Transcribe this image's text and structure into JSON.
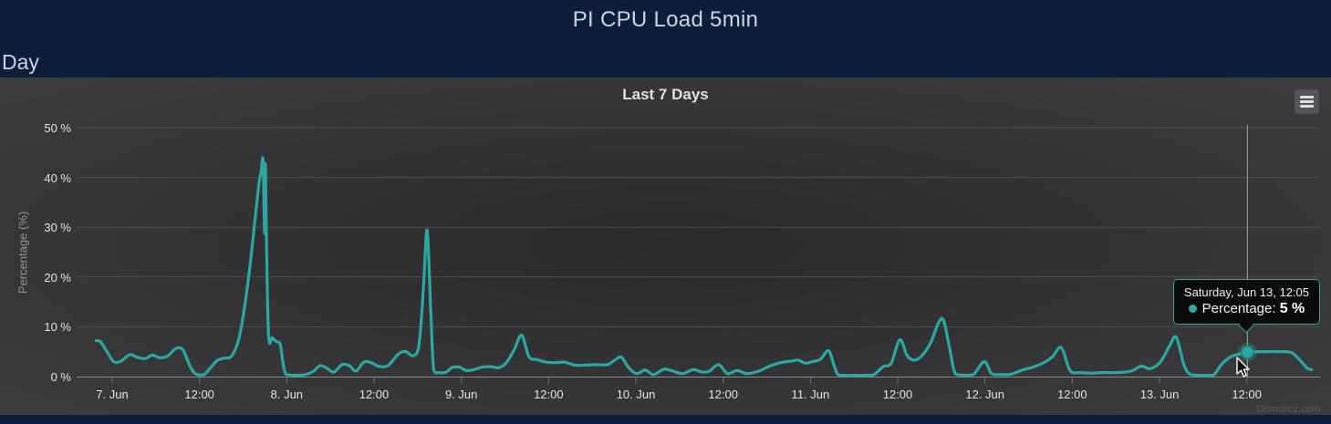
{
  "header": {
    "title": "PI CPU Load 5min",
    "range_label": "Day"
  },
  "chart": {
    "credits": "Domoticz.com",
    "menu_icon": "hamburger-menu-icon",
    "colors": {
      "page_bg": "#0d1e3b",
      "card_bg_center": "#2a2a2b",
      "card_bg_edge": "#3e3e40",
      "series": "#2CA8A3",
      "grid": "#4e4e52",
      "axis_line": "#8a8a8d",
      "tick": "#707073",
      "label": "#e3e3e6",
      "crosshair": "#c8c8c8",
      "tooltip_border": "#2CA8A3"
    }
  },
  "chart_data": {
    "type": "spline",
    "title": "Last 7 Days",
    "ylabel": "Percentage (%)",
    "xlabel": "",
    "ylim": [
      0,
      50
    ],
    "y_tick_step": 10,
    "y_tick_labels": [
      "0 %",
      "10 %",
      "20 %",
      "30 %",
      "40 %",
      "50 %"
    ],
    "x_tick_labels": [
      "7. Jun",
      "12:00",
      "8. Jun",
      "12:00",
      "9. Jun",
      "12:00",
      "10. Jun",
      "12:00",
      "11. Jun",
      "12:00",
      "12. Jun",
      "12:00",
      "13. Jun",
      "12:00"
    ],
    "x_tick_interval_hours": 12,
    "x_unit": "hours since 7. Jun 00:00",
    "grid": "horizontal-only",
    "legend": "none",
    "series": [
      {
        "name": "Percentage",
        "color": "#2CA8A3",
        "points": [
          [
            -2.2,
            7.2
          ],
          [
            -1.6,
            7.0
          ],
          [
            -0.8,
            5.2
          ],
          [
            0.2,
            3.0
          ],
          [
            1.2,
            3.1
          ],
          [
            2.4,
            4.4
          ],
          [
            3.4,
            3.9
          ],
          [
            4.5,
            3.6
          ],
          [
            5.5,
            4.3
          ],
          [
            6.5,
            3.8
          ],
          [
            7.6,
            4.1
          ],
          [
            8.7,
            5.6
          ],
          [
            9.7,
            5.4
          ],
          [
            10.7,
            2.1
          ],
          [
            11.5,
            0.5
          ],
          [
            12.6,
            0.4
          ],
          [
            13.6,
            1.9
          ],
          [
            14.5,
            3.3
          ],
          [
            15.4,
            3.7
          ],
          [
            16.4,
            4.1
          ],
          [
            17.4,
            7.5
          ],
          [
            18.2,
            14
          ],
          [
            19.0,
            23
          ],
          [
            19.7,
            32.5
          ],
          [
            20.2,
            39
          ],
          [
            20.5,
            41.3
          ],
          [
            20.75,
            43.3
          ],
          [
            20.95,
            28.8
          ],
          [
            21.05,
            42.8
          ],
          [
            21.2,
            28.6
          ],
          [
            21.5,
            8.3
          ],
          [
            22.0,
            7.8
          ],
          [
            22.6,
            7.0
          ],
          [
            23.1,
            6.5
          ],
          [
            23.5,
            2.5
          ],
          [
            23.9,
            0.5
          ],
          [
            24.8,
            0.3
          ],
          [
            26.2,
            0.3
          ],
          [
            27.6,
            1.0
          ],
          [
            28.6,
            2.2
          ],
          [
            29.6,
            1.6
          ],
          [
            30.5,
            0.9
          ],
          [
            31.6,
            2.4
          ],
          [
            32.6,
            2.2
          ],
          [
            33.5,
            1.1
          ],
          [
            34.6,
            2.9
          ],
          [
            35.6,
            2.8
          ],
          [
            36.6,
            2.1
          ],
          [
            37.9,
            2.2
          ],
          [
            39.4,
            4.6
          ],
          [
            40.4,
            5.0
          ],
          [
            41.4,
            4.2
          ],
          [
            42.2,
            6.5
          ],
          [
            42.8,
            18
          ],
          [
            43.3,
            29.4
          ],
          [
            43.8,
            13
          ],
          [
            44.2,
            1.5
          ],
          [
            44.9,
            0.8
          ],
          [
            45.9,
            0.9
          ],
          [
            46.7,
            1.8
          ],
          [
            47.7,
            1.9
          ],
          [
            48.7,
            1.2
          ],
          [
            49.7,
            1.4
          ],
          [
            50.9,
            1.9
          ],
          [
            52.1,
            2.0
          ],
          [
            53.2,
            1.8
          ],
          [
            54.3,
            3.0
          ],
          [
            55.3,
            5.5
          ],
          [
            56.3,
            8.3
          ],
          [
            57.3,
            4.0
          ],
          [
            58.4,
            3.4
          ],
          [
            59.7,
            2.9
          ],
          [
            61.1,
            2.8
          ],
          [
            62.2,
            2.9
          ],
          [
            63.6,
            2.3
          ],
          [
            65.1,
            2.3
          ],
          [
            66.6,
            2.4
          ],
          [
            68.1,
            2.4
          ],
          [
            69.1,
            3.3
          ],
          [
            70.0,
            3.9
          ],
          [
            71.0,
            1.8
          ],
          [
            72.1,
            0.6
          ],
          [
            73.3,
            1.3
          ],
          [
            74.4,
            0.4
          ],
          [
            75.9,
            1.5
          ],
          [
            77.1,
            1.1
          ],
          [
            78.4,
            0.6
          ],
          [
            79.9,
            1.4
          ],
          [
            81.1,
            0.9
          ],
          [
            82.1,
            1.1
          ],
          [
            83.4,
            2.4
          ],
          [
            84.6,
            0.6
          ],
          [
            85.9,
            1.2
          ],
          [
            87.3,
            0.6
          ],
          [
            88.9,
            1.1
          ],
          [
            90.4,
            2.1
          ],
          [
            91.9,
            2.8
          ],
          [
            93.3,
            3.1
          ],
          [
            94.3,
            3.3
          ],
          [
            95.3,
            2.7
          ],
          [
            96.3,
            3.0
          ],
          [
            97.4,
            3.5
          ],
          [
            98.5,
            5.2
          ],
          [
            99.3,
            2.0
          ],
          [
            99.9,
            0.3
          ],
          [
            101.5,
            0.2
          ],
          [
            103.1,
            0.2
          ],
          [
            104.6,
            0.3
          ],
          [
            106.0,
            2.0
          ],
          [
            107.1,
            2.7
          ],
          [
            108.3,
            7.4
          ],
          [
            109.3,
            4.2
          ],
          [
            110.3,
            3.3
          ],
          [
            111.4,
            4.3
          ],
          [
            112.6,
            7.0
          ],
          [
            113.6,
            10.8
          ],
          [
            114.3,
            11.3
          ],
          [
            115.1,
            6.0
          ],
          [
            115.9,
            0.6
          ],
          [
            117.1,
            0.3
          ],
          [
            118.4,
            0.4
          ],
          [
            119.9,
            3.0
          ],
          [
            120.9,
            0.6
          ],
          [
            122.1,
            0.4
          ],
          [
            123.6,
            0.5
          ],
          [
            125.1,
            1.3
          ],
          [
            126.6,
            1.9
          ],
          [
            128.1,
            2.8
          ],
          [
            129.3,
            4.0
          ],
          [
            130.5,
            5.8
          ],
          [
            131.7,
            1.2
          ],
          [
            133.1,
            0.8
          ],
          [
            134.6,
            0.7
          ],
          [
            136.1,
            0.8
          ],
          [
            138.1,
            0.8
          ],
          [
            140.1,
            1.1
          ],
          [
            141.5,
            2.1
          ],
          [
            142.7,
            1.6
          ],
          [
            144.1,
            2.9
          ],
          [
            145.4,
            6.2
          ],
          [
            146.3,
            7.9
          ],
          [
            147.4,
            2.2
          ],
          [
            148.3,
            0.4
          ],
          [
            149.9,
            0.2
          ],
          [
            151.4,
            0.3
          ],
          [
            152.5,
            2.4
          ],
          [
            153.7,
            3.9
          ],
          [
            154.9,
            4.5
          ],
          [
            156.1,
            4.9
          ],
          [
            157.7,
            5.0
          ],
          [
            159.3,
            5.0
          ],
          [
            160.9,
            5.0
          ],
          [
            162.2,
            4.8
          ],
          [
            163.3,
            3.3
          ],
          [
            164.3,
            1.7
          ],
          [
            164.9,
            1.4
          ]
        ]
      }
    ],
    "hover_point": {
      "h": 156.08,
      "value": 4.9
    },
    "tooltip": {
      "date": "Saturday, Jun 13, 12:05",
      "series_label": "Percentage:",
      "value": "5 %"
    }
  }
}
